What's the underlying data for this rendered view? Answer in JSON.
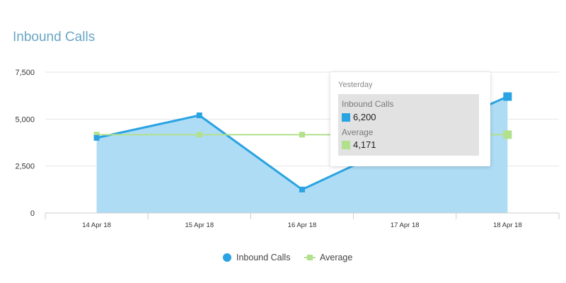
{
  "title": "Inbound Calls",
  "chart_data": {
    "type": "area",
    "title": "Inbound Calls",
    "categories": [
      "14 Apr 18",
      "15 Apr 18",
      "16 Apr 18",
      "17 Apr 18",
      "18 Apr 18"
    ],
    "ylim": [
      0,
      7500
    ],
    "yticks": [
      "0",
      "2,500",
      "5,000",
      "7,500"
    ],
    "yticks_values": [
      0,
      2500,
      5000,
      7500
    ],
    "grid": true,
    "legend_position": "bottom",
    "series": [
      {
        "name": "Inbound Calls",
        "type": "area",
        "color": "#2aa3e2",
        "fill": "#aedcf4",
        "values": [
          4000,
          5200,
          1250,
          3800,
          6200
        ]
      },
      {
        "name": "Average",
        "type": "line",
        "color": "#b2e08c",
        "values": [
          4171,
          4171,
          4171,
          4171,
          4171
        ]
      }
    ]
  },
  "tooltip": {
    "title": "Yesterday",
    "series1_name": "Inbound Calls",
    "series1_value": "6,200",
    "series1_color": "#2aa3e2",
    "series2_name": "Average",
    "series2_value": "4,171",
    "series2_color": "#b2e08c"
  },
  "legend": {
    "item1": "Inbound Calls",
    "item2": "Average"
  }
}
